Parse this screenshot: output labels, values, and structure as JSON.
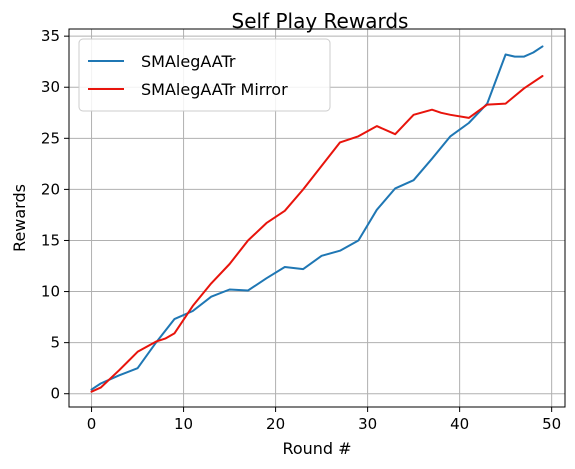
{
  "chart_data": {
    "type": "line",
    "title": "Self Play Rewards",
    "xlabel": "Round #",
    "ylabel": "Rewards",
    "xlim": [
      -2.45,
      51.45
    ],
    "ylim": [
      -1.3,
      35.7
    ],
    "xticks": [
      0,
      10,
      20,
      30,
      40,
      50
    ],
    "yticks": [
      0,
      5,
      10,
      15,
      20,
      25,
      30,
      35
    ],
    "grid": true,
    "legend_position": "upper-left",
    "series": [
      {
        "name": "SMAlegAATr",
        "color": "#1f77b4",
        "x": [
          0,
          1,
          3,
          5,
          7,
          9,
          11,
          13,
          15,
          17,
          19,
          21,
          23,
          25,
          27,
          29,
          31,
          33,
          35,
          37,
          39,
          41,
          43,
          45,
          46,
          47,
          48,
          49
        ],
        "y": [
          0.4,
          1.0,
          1.8,
          2.5,
          5.0,
          7.3,
          8.1,
          9.5,
          10.2,
          10.1,
          11.3,
          12.4,
          12.2,
          13.5,
          14.0,
          15.0,
          18.0,
          20.1,
          20.9,
          23.0,
          25.2,
          26.5,
          28.4,
          33.2,
          33.0,
          33.0,
          33.4,
          34.0
        ]
      },
      {
        "name": "SMAlegAATr Mirror",
        "color": "#e8140c",
        "x": [
          0,
          1,
          3,
          5,
          7,
          8,
          9,
          11,
          13,
          15,
          17,
          19,
          21,
          23,
          25,
          27,
          29,
          31,
          33,
          35,
          37,
          38,
          39,
          41,
          43,
          45,
          47,
          49
        ],
        "y": [
          0.2,
          0.6,
          2.3,
          4.1,
          5.1,
          5.4,
          5.9,
          8.6,
          10.8,
          12.7,
          15.0,
          16.7,
          17.9,
          20.0,
          22.3,
          24.6,
          25.2,
          26.2,
          25.4,
          27.3,
          27.8,
          27.5,
          27.3,
          27.0,
          28.3,
          28.4,
          29.9,
          31.1
        ]
      }
    ]
  }
}
